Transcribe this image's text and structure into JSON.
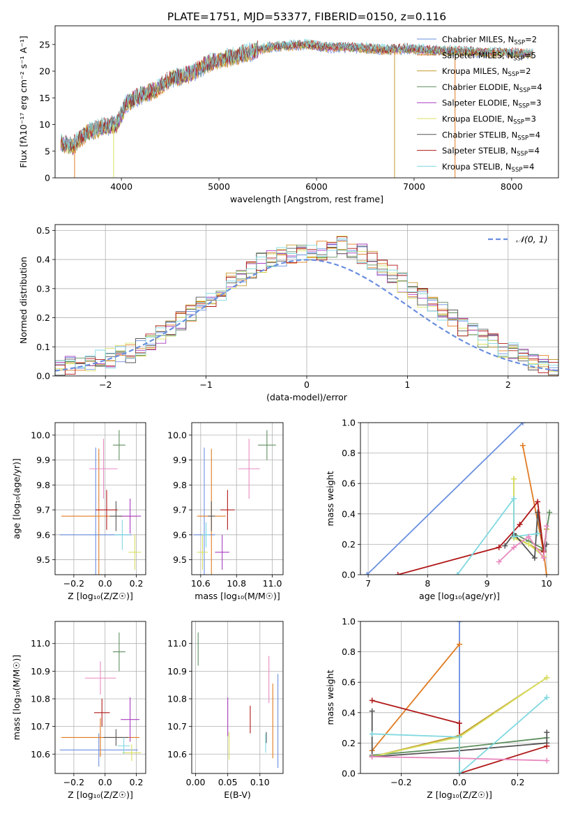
{
  "figure": {
    "title": "PLATE=1751, MJD=53377, FIBERID=0150, z=0.116"
  },
  "palette": {
    "Chabrier MILES": "#6a8fe0",
    "Salpeter MILES": "#e07b22",
    "Kroupa MILES": "#c39b2f",
    "Chabrier ELODIE": "#5f8f5f",
    "Salpeter ELODIE": "#a83cc0",
    "Kroupa ELODIE": "#d8e060",
    "Chabrier STELIB": "#555555",
    "Salpeter STELIB": "#b01818",
    "Kroupa STELIB": "#7fd8e0",
    "pink": "#e88ac0"
  },
  "chart_data": [
    {
      "id": "spectrum",
      "type": "line",
      "title": "PLATE=1751, MJD=53377, FIBERID=0150, z=0.116",
      "xlabel": "wavelength [Angstrom, rest frame]",
      "ylabel": "Flux [fλ10⁻¹⁷ erg cm⁻² s⁻¹ A⁻¹]",
      "xlim": [
        3320,
        8480
      ],
      "ylim": [
        0,
        28.5
      ],
      "xticks": [
        4000,
        5000,
        6000,
        7000,
        8000
      ],
      "yticks": [
        0,
        5,
        10,
        15,
        20,
        25
      ],
      "grid": false,
      "legend_position": "top-right",
      "series": [
        {
          "name": "Chabrier MILES, N_SSP=2",
          "legend": "Chabrier MILES, N",
          "sub": "SSP",
          "suffix": "=2",
          "color": "#6a8fe0"
        },
        {
          "name": "Salpeter MILES, N_SSP=5",
          "legend": "Salpeter MILES, N",
          "sub": "SSP",
          "suffix": "=5",
          "color": "#e07b22"
        },
        {
          "name": "Kroupa MILES, N_SSP=2",
          "legend": "Kroupa MILES, N",
          "sub": "SSP",
          "suffix": "=2",
          "color": "#c39b2f"
        },
        {
          "name": "Chabrier ELODIE, N_SSP=4",
          "legend": "Chabrier ELODIE, N",
          "sub": "SSP",
          "suffix": "=4",
          "color": "#5f8f5f"
        },
        {
          "name": "Salpeter ELODIE, N_SSP=3",
          "legend": "Salpeter ELODIE, N",
          "sub": "SSP",
          "suffix": "=3",
          "color": "#a83cc0"
        },
        {
          "name": "Kroupa ELODIE, N_SSP=3",
          "legend": "Kroupa ELODIE, N",
          "sub": "SSP",
          "suffix": "=3",
          "color": "#d8e060"
        },
        {
          "name": "Chabrier STELIB, N_SSP=4",
          "legend": "Chabrier STELIB, N",
          "sub": "SSP",
          "suffix": "=4",
          "color": "#555555"
        },
        {
          "name": "Salpeter STELIB, N_SSP=4",
          "legend": "Salpeter STELIB, N",
          "sub": "SSP",
          "suffix": "=4",
          "color": "#b01818"
        },
        {
          "name": "Kroupa STELIB, N_SSP=4",
          "legend": "Kroupa STELIB, N",
          "sub": "SSP",
          "suffix": "=4",
          "color": "#7fd8e0"
        }
      ],
      "continuum": {
        "x": [
          3380,
          3500,
          3650,
          3800,
          3950,
          4050,
          4200,
          4350,
          4500,
          4700,
          4900,
          5100,
          5300,
          5500,
          5700,
          5900,
          6100,
          6300,
          6500,
          6700,
          6900,
          7100,
          7300,
          7500,
          7700,
          7900,
          8100,
          8220
        ],
        "y": [
          6.5,
          6.0,
          8.5,
          9.5,
          10.0,
          14.0,
          15.5,
          16.5,
          18.5,
          19.5,
          21.5,
          22.5,
          23.5,
          24.5,
          24.8,
          25.0,
          24.5,
          24.5,
          24.3,
          24.0,
          24.2,
          24.0,
          23.8,
          23.7,
          23.5,
          23.5,
          23.3,
          23.3
        ]
      },
      "dropouts": [
        {
          "x": 3520,
          "color": "#e07b22"
        },
        {
          "x": 3920,
          "color": "#d8e060"
        },
        {
          "x": 6800,
          "color": "#c39b2f"
        },
        {
          "x": 7420,
          "color": "#e07b22"
        }
      ]
    },
    {
      "id": "residuals",
      "type": "bar",
      "xlabel": "(data-model)/error",
      "ylabel": "Normed distribution",
      "xlim": [
        -2.5,
        2.5
      ],
      "ylim": [
        0,
        0.52
      ],
      "xticks": [
        -2,
        -1,
        0,
        1,
        2
      ],
      "yticks": [
        0.0,
        0.1,
        0.2,
        0.3,
        0.4,
        0.5
      ],
      "grid": true,
      "legend_position": "top-right",
      "legend_label": "𝒩(0, 1)",
      "normal_curve": {
        "mean": 0,
        "sigma": 1,
        "color": "#6a8fe0"
      },
      "histogram_base": {
        "bin_edges": [
          -2.5,
          -2.4,
          -2.3,
          -2.2,
          -2.1,
          -2.0,
          -1.9,
          -1.8,
          -1.7,
          -1.6,
          -1.5,
          -1.4,
          -1.3,
          -1.2,
          -1.1,
          -1.0,
          -0.9,
          -0.8,
          -0.7,
          -0.6,
          -0.5,
          -0.4,
          -0.3,
          -0.2,
          -0.1,
          0.0,
          0.1,
          0.2,
          0.3,
          0.4,
          0.5,
          0.6,
          0.7,
          0.8,
          0.9,
          1.0,
          1.1,
          1.2,
          1.3,
          1.4,
          1.5,
          1.6,
          1.7,
          1.8,
          1.9,
          2.0,
          2.1,
          2.2,
          2.3,
          2.4,
          2.5
        ],
        "values": [
          0.03,
          0.035,
          0.04,
          0.05,
          0.055,
          0.06,
          0.07,
          0.08,
          0.1,
          0.12,
          0.14,
          0.16,
          0.19,
          0.22,
          0.24,
          0.27,
          0.29,
          0.32,
          0.34,
          0.37,
          0.39,
          0.4,
          0.41,
          0.42,
          0.42,
          0.42,
          0.43,
          0.44,
          0.45,
          0.44,
          0.42,
          0.4,
          0.38,
          0.35,
          0.32,
          0.3,
          0.27,
          0.25,
          0.22,
          0.2,
          0.17,
          0.15,
          0.13,
          0.11,
          0.09,
          0.08,
          0.06,
          0.05,
          0.04,
          0.03
        ]
      }
    },
    {
      "id": "age-vs-Z",
      "type": "scatter",
      "xlabel": "Z [log₁₀(Z/Z☉)]",
      "ylabel": "age  [log₁₀(age/yr)]",
      "xlim": [
        -0.32,
        0.26
      ],
      "ylim": [
        9.44,
        10.05
      ],
      "xticks": [
        -0.2,
        0.0,
        0.2
      ],
      "xticklabels": [
        "−0.2",
        "0.0",
        "0.2"
      ],
      "yticks": [
        9.5,
        9.6,
        9.7,
        9.8,
        9.9,
        10.0
      ],
      "grid": true,
      "points": [
        {
          "x": -0.06,
          "y": 9.6,
          "xerr": 0.23,
          "yerr": 0.35,
          "color": "#6a8fe0"
        },
        {
          "x": -0.04,
          "y": 9.675,
          "xerr": 0.24,
          "yerr": 0.27,
          "color": "#e07b22"
        },
        {
          "x": -0.01,
          "y": 9.865,
          "xerr": 0.09,
          "yerr": 0.12,
          "color": "#e88ac0"
        },
        {
          "x": 0.09,
          "y": 9.96,
          "xerr": 0.04,
          "yerr": 0.06,
          "color": "#5f8f5f"
        },
        {
          "x": 0.16,
          "y": 9.675,
          "xerr": 0.07,
          "yerr": 0.07,
          "color": "#a83cc0"
        },
        {
          "x": 0.19,
          "y": 9.53,
          "xerr": 0.04,
          "yerr": 0.07,
          "color": "#d8e060"
        },
        {
          "x": 0.07,
          "y": 9.675,
          "xerr": 0.04,
          "yerr": 0.06,
          "color": "#555555"
        },
        {
          "x": 0.01,
          "y": 9.7,
          "xerr": 0.07,
          "yerr": 0.08,
          "color": "#b01818"
        },
        {
          "x": 0.11,
          "y": 9.6,
          "xerr": 0.05,
          "yerr": 0.06,
          "color": "#7fd8e0"
        }
      ]
    },
    {
      "id": "age-vs-mass",
      "type": "scatter",
      "xlabel": "mass [log₁₀(M/M☉)]",
      "ylabel": "",
      "xlim": [
        10.55,
        11.06
      ],
      "ylim": [
        9.44,
        10.05
      ],
      "xticks": [
        10.6,
        10.8,
        11.0
      ],
      "xticklabels": [
        "10.6",
        "10.8",
        "11.0"
      ],
      "yticks": [
        9.5,
        9.6,
        9.7,
        9.8,
        9.9,
        10.0
      ],
      "grid": true,
      "points": [
        {
          "x": 10.62,
          "y": 9.6,
          "xerr": 0.06,
          "yerr": 0.35,
          "color": "#6a8fe0"
        },
        {
          "x": 10.66,
          "y": 9.675,
          "xerr": 0.08,
          "yerr": 0.27,
          "color": "#e07b22"
        },
        {
          "x": 10.87,
          "y": 9.865,
          "xerr": 0.06,
          "yerr": 0.12,
          "color": "#e88ac0"
        },
        {
          "x": 10.97,
          "y": 9.96,
          "xerr": 0.05,
          "yerr": 0.06,
          "color": "#5f8f5f"
        },
        {
          "x": 10.72,
          "y": 9.53,
          "xerr": 0.04,
          "yerr": 0.07,
          "color": "#a83cc0"
        },
        {
          "x": 10.61,
          "y": 9.53,
          "xerr": 0.03,
          "yerr": 0.07,
          "color": "#d8e060"
        },
        {
          "x": 10.66,
          "y": 9.675,
          "xerr": 0.02,
          "yerr": 0.06,
          "color": "#555555"
        },
        {
          "x": 10.75,
          "y": 9.7,
          "xerr": 0.04,
          "yerr": 0.08,
          "color": "#b01818"
        },
        {
          "x": 10.63,
          "y": 9.6,
          "xerr": 0.02,
          "yerr": 0.05,
          "color": "#7fd8e0"
        }
      ]
    },
    {
      "id": "weight-vs-age",
      "type": "line",
      "xlabel": "age  [log₁₀(age/yr)]",
      "ylabel": "mass weight",
      "xlim": [
        6.87,
        10.2
      ],
      "ylim": [
        0,
        1.0
      ],
      "xticks": [
        7,
        8,
        9,
        10
      ],
      "yticks": [
        0.0,
        0.2,
        0.4,
        0.6,
        0.8,
        1.0
      ],
      "grid": true,
      "series": [
        {
          "color": "#6a8fe0",
          "x": [
            6.98,
            9.6
          ],
          "y": [
            0.0,
            1.0
          ]
        },
        {
          "color": "#e07b22",
          "x": [
            9.6,
            9.95,
            10.0
          ],
          "y": [
            0.85,
            0.15,
            0.0
          ]
        },
        {
          "color": "#c39b2f",
          "x": [
            9.45,
            9.45,
            9.95,
            10.0
          ],
          "y": [
            0.63,
            0.25,
            0.15,
            0.3
          ]
        },
        {
          "color": "#5f8f5f",
          "x": [
            9.45,
            9.7,
            9.95,
            10.05
          ],
          "y": [
            0.27,
            0.22,
            0.17,
            0.41
          ]
        },
        {
          "color": "#d8e060",
          "x": [
            9.45,
            9.45,
            9.7,
            9.95
          ],
          "y": [
            0.63,
            0.24,
            0.2,
            0.12
          ]
        },
        {
          "color": "#555555",
          "x": [
            9.3,
            9.45,
            9.8,
            9.85,
            9.95,
            10.0
          ],
          "y": [
            0.19,
            0.27,
            0.11,
            0.41,
            0.16,
            0.2
          ]
        },
        {
          "color": "#b01818",
          "x": [
            7.5,
            9.2,
            9.55,
            9.85,
            9.95
          ],
          "y": [
            0.0,
            0.18,
            0.33,
            0.48,
            0.15
          ]
        },
        {
          "color": "#7fd8e0",
          "x": [
            8.5,
            9.45,
            9.45,
            9.85
          ],
          "y": [
            0.0,
            0.5,
            0.25,
            0.27
          ]
        },
        {
          "color": "#e88ac0",
          "x": [
            9.2,
            9.45,
            9.7,
            9.95,
            10.0
          ],
          "y": [
            0.085,
            0.18,
            0.25,
            0.11,
            0.32
          ]
        }
      ]
    },
    {
      "id": "mass-vs-Z",
      "type": "scatter",
      "xlabel": "Z [log₁₀(Z/Z☉)]",
      "ylabel": "mass [log₁₀(M/M☉)]",
      "xlim": [
        -0.32,
        0.26
      ],
      "ylim": [
        10.53,
        11.08
      ],
      "xticks": [
        -0.2,
        0.0,
        0.2
      ],
      "xticklabels": [
        "−0.2",
        "0.0",
        "0.2"
      ],
      "yticks": [
        10.6,
        10.7,
        10.8,
        10.9,
        11.0
      ],
      "grid": true,
      "points": [
        {
          "x": -0.04,
          "y": 10.615,
          "xerr": 0.25,
          "yerr": 0.06,
          "color": "#6a8fe0"
        },
        {
          "x": -0.03,
          "y": 10.66,
          "xerr": 0.25,
          "yerr": 0.07,
          "color": "#e07b22"
        },
        {
          "x": -0.03,
          "y": 10.875,
          "xerr": 0.1,
          "yerr": 0.06,
          "color": "#e88ac0"
        },
        {
          "x": 0.09,
          "y": 10.97,
          "xerr": 0.04,
          "yerr": 0.07,
          "color": "#5f8f5f"
        },
        {
          "x": 0.16,
          "y": 10.725,
          "xerr": 0.06,
          "yerr": 0.08,
          "color": "#a83cc0"
        },
        {
          "x": 0.17,
          "y": 10.605,
          "xerr": 0.06,
          "yerr": 0.03,
          "color": "#d8e060"
        },
        {
          "x": 0.07,
          "y": 10.66,
          "xerr": 0.08,
          "yerr": 0.03,
          "color": "#555555"
        },
        {
          "x": -0.02,
          "y": 10.75,
          "xerr": 0.05,
          "yerr": 0.05,
          "color": "#b01818"
        },
        {
          "x": 0.12,
          "y": 10.63,
          "xerr": 0.04,
          "yerr": 0.03,
          "color": "#7fd8e0"
        }
      ]
    },
    {
      "id": "mass-vs-ebv",
      "type": "scatter",
      "xlabel": "E(B-V)",
      "ylabel": "",
      "xlim": [
        -0.006,
        0.136
      ],
      "ylim": [
        10.53,
        11.08
      ],
      "xticks": [
        0.0,
        0.05,
        0.1
      ],
      "xticklabels": [
        "0.00",
        "0.05",
        "0.10"
      ],
      "yticks": [
        10.6,
        10.7,
        10.8,
        10.9,
        11.0
      ],
      "grid": true,
      "points": [
        {
          "x": 0.128,
          "y": 10.72,
          "xerr": 0,
          "yerr": 0.17,
          "color": "#6a8fe0"
        },
        {
          "x": 0.12,
          "y": 10.72,
          "xerr": 0,
          "yerr": 0.135,
          "color": "#e07b22"
        },
        {
          "x": 0.114,
          "y": 10.87,
          "xerr": 0,
          "yerr": 0.085,
          "color": "#e88ac0"
        },
        {
          "x": 0.004,
          "y": 10.98,
          "xerr": 0,
          "yerr": 0.06,
          "color": "#5f8f5f"
        },
        {
          "x": 0.05,
          "y": 10.735,
          "xerr": 0,
          "yerr": 0.07,
          "color": "#a83cc0"
        },
        {
          "x": 0.052,
          "y": 10.63,
          "xerr": 0,
          "yerr": 0.05,
          "color": "#d8e060"
        },
        {
          "x": 0.11,
          "y": 10.66,
          "xerr": 0,
          "yerr": 0.02,
          "color": "#555555"
        },
        {
          "x": 0.085,
          "y": 10.725,
          "xerr": 0,
          "yerr": 0.05,
          "color": "#b01818"
        },
        {
          "x": 0.109,
          "y": 10.64,
          "xerr": 0,
          "yerr": 0.035,
          "color": "#7fd8e0"
        }
      ]
    },
    {
      "id": "weight-vs-Z",
      "type": "line",
      "xlabel": "Z [log₁₀(Z/Z☉)]",
      "ylabel": "mass weight",
      "xlim": [
        -0.34,
        0.34
      ],
      "ylim": [
        0,
        1.0
      ],
      "xticks": [
        -0.2,
        0.0,
        0.2
      ],
      "xticklabels": [
        "−0.2",
        "0.0",
        "0.2"
      ],
      "yticks": [
        0.0,
        0.2,
        0.4,
        0.6,
        0.8,
        1.0
      ],
      "grid": true,
      "series": [
        {
          "color": "#6a8fe0",
          "x": [
            0.0,
            0.0
          ],
          "y": [
            0.0,
            1.0
          ]
        },
        {
          "color": "#e07b22",
          "x": [
            -0.3,
            0.0
          ],
          "y": [
            0.15,
            0.85
          ]
        },
        {
          "color": "#c39b2f",
          "x": [
            -0.3,
            0.0,
            0.3
          ],
          "y": [
            0.11,
            0.25,
            0.63
          ]
        },
        {
          "color": "#5f8f5f",
          "x": [
            -0.3,
            0.0,
            0.3
          ],
          "y": [
            0.12,
            0.17,
            0.235
          ]
        },
        {
          "color": "#d8e060",
          "x": [
            -0.3,
            0.0,
            0.3
          ],
          "y": [
            0.11,
            0.24,
            0.63
          ]
        },
        {
          "color": "#555555",
          "x": [
            -0.3,
            -0.3,
            0.0,
            0.3,
            0.3
          ],
          "y": [
            0.41,
            0.11,
            0.15,
            0.2,
            0.27
          ]
        },
        {
          "color": "#b01818",
          "x": [
            -0.3,
            0.0,
            0.0,
            0.3
          ],
          "y": [
            0.48,
            0.33,
            0.0,
            0.18
          ]
        },
        {
          "color": "#7fd8e0",
          "x": [
            -0.3,
            0.0,
            0.0,
            0.3
          ],
          "y": [
            0.26,
            0.24,
            0.0,
            0.5
          ]
        },
        {
          "color": "#e88ac0",
          "x": [
            -0.3,
            0.0,
            0.3
          ],
          "y": [
            0.11,
            0.1,
            0.085
          ]
        }
      ]
    }
  ]
}
